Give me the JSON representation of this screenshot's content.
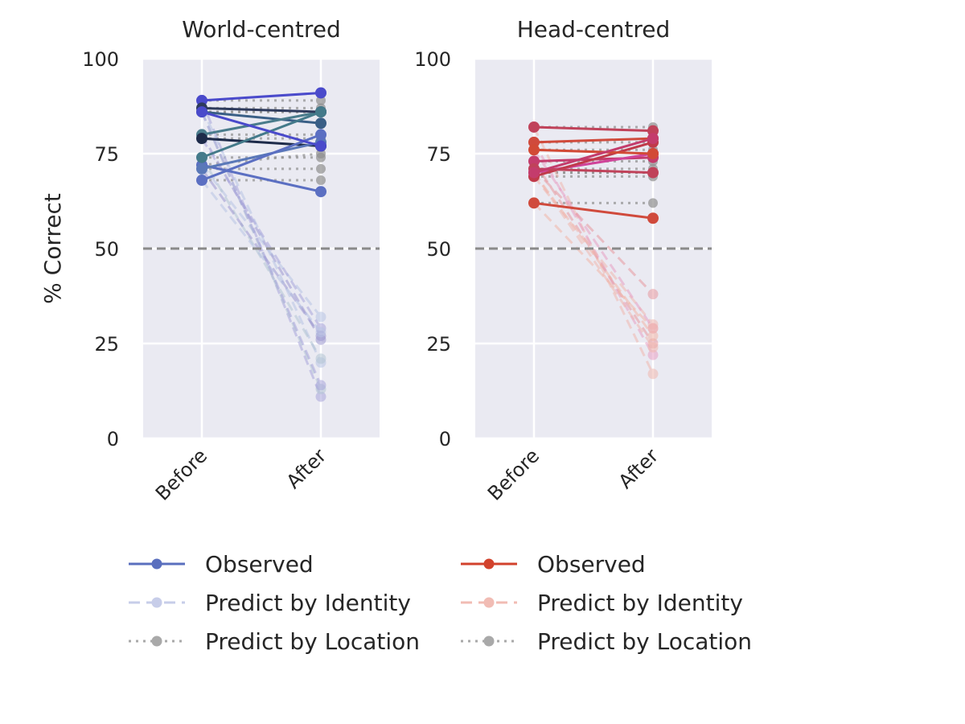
{
  "chart_data": [
    {
      "type": "line",
      "title": "World-centred",
      "ylabel": "% Correct",
      "xlabel": "",
      "categories": [
        "Before",
        "After"
      ],
      "ylim": [
        0,
        100
      ],
      "yticks": [
        "0",
        "25",
        "50",
        "75",
        "100"
      ],
      "reference_line": 50,
      "grid": true,
      "palette": {
        "observed": [
          "#5b6fc2",
          "#4a4acb",
          "#3a5f86",
          "#4a7c8c",
          "#2e3a5c",
          "#1e2b4a",
          "#447a8a",
          "#5a78b8"
        ],
        "identity": [
          "#b8c4e4",
          "#a9a6dc",
          "#b4c6d4",
          "#9c98d0"
        ],
        "location": "#8f8f8f"
      },
      "observed": [
        [
          72,
          65
        ],
        [
          89,
          91
        ],
        [
          86,
          83
        ],
        [
          80,
          86
        ],
        [
          87,
          86
        ],
        [
          79,
          77
        ],
        [
          74,
          86
        ],
        [
          71,
          78
        ],
        [
          68,
          80
        ],
        [
          86,
          77
        ]
      ],
      "predict_identity": [
        [
          72,
          32
        ],
        [
          89,
          11
        ],
        [
          86,
          13
        ],
        [
          80,
          26
        ],
        [
          87,
          20
        ],
        [
          79,
          29
        ],
        [
          74,
          21
        ],
        [
          71,
          27
        ],
        [
          68,
          28
        ],
        [
          86,
          14
        ]
      ],
      "predict_location": [
        [
          72,
          75
        ],
        [
          89,
          89
        ],
        [
          86,
          86
        ],
        [
          80,
          80
        ],
        [
          87,
          87
        ],
        [
          79,
          79
        ],
        [
          74,
          74
        ],
        [
          71,
          71
        ],
        [
          68,
          68
        ],
        [
          86,
          86
        ]
      ]
    },
    {
      "type": "line",
      "title": "Head-centred",
      "ylabel": "",
      "xlabel": "",
      "categories": [
        "Before",
        "After"
      ],
      "ylim": [
        0,
        100
      ],
      "yticks": [
        "0",
        "25",
        "50",
        "75",
        "100"
      ],
      "reference_line": 50,
      "grid": true,
      "palette": {
        "observed": [
          "#c0425a",
          "#d04a3c",
          "#c43c6c",
          "#d0449a",
          "#c03a4a",
          "#d24a36"
        ],
        "identity": [
          "#f0b8b0",
          "#e8a0c4",
          "#e89aa0",
          "#f2b6a8"
        ],
        "location": "#8f8f8f"
      },
      "observed": [
        [
          82,
          81
        ],
        [
          78,
          79
        ],
        [
          73,
          74
        ],
        [
          70,
          75
        ],
        [
          69,
          78
        ],
        [
          76,
          75
        ],
        [
          71,
          70
        ],
        [
          62,
          58
        ],
        [
          70,
          79
        ]
      ],
      "predict_identity": [
        [
          82,
          17
        ],
        [
          78,
          22
        ],
        [
          73,
          25
        ],
        [
          70,
          27
        ],
        [
          69,
          30
        ],
        [
          76,
          29
        ],
        [
          71,
          38
        ],
        [
          62,
          29
        ],
        [
          70,
          24
        ]
      ],
      "predict_location": [
        [
          82,
          82
        ],
        [
          78,
          78
        ],
        [
          73,
          73
        ],
        [
          70,
          70
        ],
        [
          69,
          69
        ],
        [
          76,
          76
        ],
        [
          71,
          71
        ],
        [
          62,
          62
        ],
        [
          70,
          70
        ]
      ]
    }
  ],
  "legends": [
    {
      "items": [
        {
          "label": "Observed",
          "style": "solid",
          "color": "#5a6fbe"
        },
        {
          "label": "Predict by Identity",
          "style": "dashed",
          "color": "#c7cde9"
        },
        {
          "label": "Predict by Location",
          "style": "dotted",
          "color": "#a9a9a9"
        }
      ]
    },
    {
      "items": [
        {
          "label": "Observed",
          "style": "solid",
          "color": "#d2422c"
        },
        {
          "label": "Predict by Identity",
          "style": "dashed",
          "color": "#f1bcb4"
        },
        {
          "label": "Predict by Location",
          "style": "dotted",
          "color": "#a9a9a9"
        }
      ]
    }
  ]
}
